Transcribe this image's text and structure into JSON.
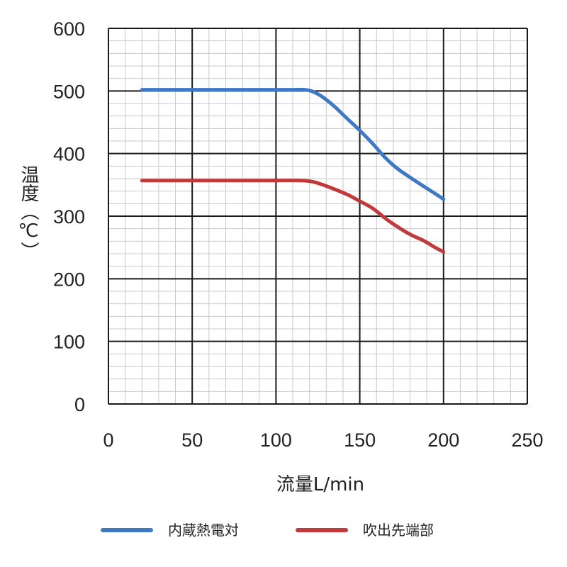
{
  "chart_data": {
    "type": "line",
    "xlabel": "流量L/min",
    "ylabel": "温度（℃）",
    "xlim": [
      0,
      250
    ],
    "ylim": [
      0,
      600
    ],
    "xticks": [
      0,
      50,
      100,
      150,
      200,
      250
    ],
    "yticks": [
      0,
      100,
      200,
      300,
      400,
      500,
      600
    ],
    "grid": true,
    "legend_position": "bottom",
    "series": [
      {
        "name": "内蔵熱電対",
        "color": "#3f78c4",
        "x": [
          20,
          40,
          60,
          80,
          100,
          110,
          117,
          122,
          128,
          135,
          142,
          150,
          158,
          165,
          172,
          180,
          188,
          195,
          200
        ],
        "y": [
          502,
          502,
          502,
          502,
          502,
          502,
          502,
          499,
          490,
          475,
          457,
          437,
          415,
          394,
          377,
          362,
          348,
          336,
          327
        ]
      },
      {
        "name": "吹出先端部",
        "color": "#c0393b",
        "x": [
          20,
          40,
          60,
          80,
          100,
          115,
          122,
          128,
          135,
          143,
          150,
          158,
          165,
          172,
          180,
          188,
          195,
          200
        ],
        "y": [
          357,
          357,
          357,
          357,
          357,
          357,
          355,
          350,
          343,
          334,
          324,
          312,
          297,
          284,
          271,
          261,
          250,
          243
        ]
      }
    ]
  }
}
